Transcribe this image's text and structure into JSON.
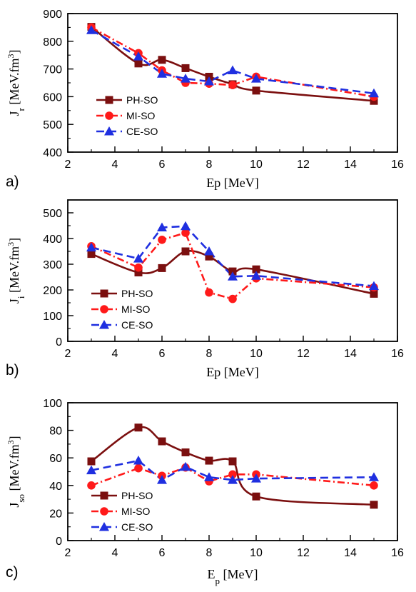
{
  "series_styles": [
    {
      "name": "PH-SO",
      "color": "#7b0f0f",
      "marker": "square",
      "dash": ""
    },
    {
      "name": "MI-SO",
      "color": "#ff1a1a",
      "marker": "circle",
      "dash": "10 4 2 4"
    },
    {
      "name": "CE-SO",
      "color": "#1f2fe0",
      "marker": "triangle",
      "dash": "11 6"
    }
  ],
  "chart_data": [
    {
      "type": "line",
      "panel_label": "a)",
      "xlabel": "Ep [MeV]",
      "ylabel": "J_r [MeV.fm^3]",
      "ylabel_main": "J",
      "ylabel_sub": "r",
      "ylabel_unit": " [MeV.fm",
      "xlim": [
        2,
        16
      ],
      "ylim": [
        400,
        900
      ],
      "xticks": [
        2,
        4,
        6,
        8,
        10,
        12,
        14,
        16
      ],
      "yticks": [
        400,
        500,
        600,
        700,
        800,
        900
      ],
      "legend": [
        "PH-SO",
        "MI-SO",
        "CE-SO"
      ],
      "legend_position": "lower-left",
      "x": [
        3,
        5,
        6,
        7,
        8,
        9,
        10,
        15
      ],
      "series": [
        {
          "name": "PH-SO",
          "values": [
            852,
            720,
            733,
            703,
            672,
            645,
            622,
            585
          ],
          "smooth": true
        },
        {
          "name": "MI-SO",
          "values": [
            850,
            757,
            695,
            650,
            647,
            642,
            672,
            600
          ],
          "smooth": false
        },
        {
          "name": "CE-SO",
          "values": [
            840,
            745,
            683,
            665,
            655,
            695,
            665,
            612
          ],
          "smooth": false
        }
      ]
    },
    {
      "type": "line",
      "panel_label": "b)",
      "xlabel": "Ep [MeV]",
      "ylabel": "J_i [MeV.fm^3]",
      "ylabel_main": "J",
      "ylabel_sub": "i",
      "ylabel_unit": " [MeV.fm",
      "xlim": [
        2,
        16
      ],
      "ylim": [
        0,
        550
      ],
      "xticks": [
        2,
        4,
        6,
        8,
        10,
        12,
        14,
        16
      ],
      "yticks": [
        0,
        100,
        200,
        300,
        400,
        500
      ],
      "legend": [
        "PH-SO",
        "MI-SO",
        "CE-SO"
      ],
      "legend_position": "lower-left",
      "x": [
        3,
        5,
        6,
        7,
        8,
        9,
        10,
        15
      ],
      "series": [
        {
          "name": "PH-SO",
          "values": [
            340,
            268,
            285,
            350,
            330,
            272,
            280,
            185
          ],
          "smooth": true
        },
        {
          "name": "MI-SO",
          "values": [
            370,
            287,
            395,
            422,
            190,
            165,
            245,
            210
          ],
          "smooth": false
        },
        {
          "name": "CE-SO",
          "values": [
            365,
            322,
            443,
            448,
            350,
            252,
            255,
            215
          ],
          "smooth": false
        }
      ]
    },
    {
      "type": "line",
      "panel_label": "c)",
      "xlabel": "E_p [MeV]",
      "xlabel_main": "E",
      "xlabel_sub": "p",
      "xlabel_unit": " [MeV]",
      "ylabel": "J_so [MeV.fm^3]",
      "ylabel_main": "J",
      "ylabel_sub": "so",
      "ylabel_unit": " [MeV.fm",
      "xlim": [
        2,
        16
      ],
      "ylim": [
        0,
        100
      ],
      "xticks": [
        2,
        4,
        6,
        8,
        10,
        12,
        14,
        16
      ],
      "yticks": [
        0,
        20,
        40,
        60,
        80,
        100
      ],
      "legend": [
        "PH-SO",
        "MI-SO",
        "CE-SO"
      ],
      "legend_position": "lower-left",
      "x": [
        3,
        5,
        6,
        7,
        8,
        9,
        10,
        15
      ],
      "series": [
        {
          "name": "PH-SO",
          "values": [
            57.5,
            82,
            72,
            64,
            58,
            57.5,
            32,
            26
          ],
          "smooth": true
        },
        {
          "name": "MI-SO",
          "values": [
            40,
            52.5,
            47,
            53,
            43,
            48,
            48,
            40
          ],
          "smooth": false
        },
        {
          "name": "CE-SO",
          "values": [
            51,
            58,
            44,
            53.5,
            46,
            44,
            45,
            46
          ],
          "smooth": false
        }
      ]
    }
  ]
}
